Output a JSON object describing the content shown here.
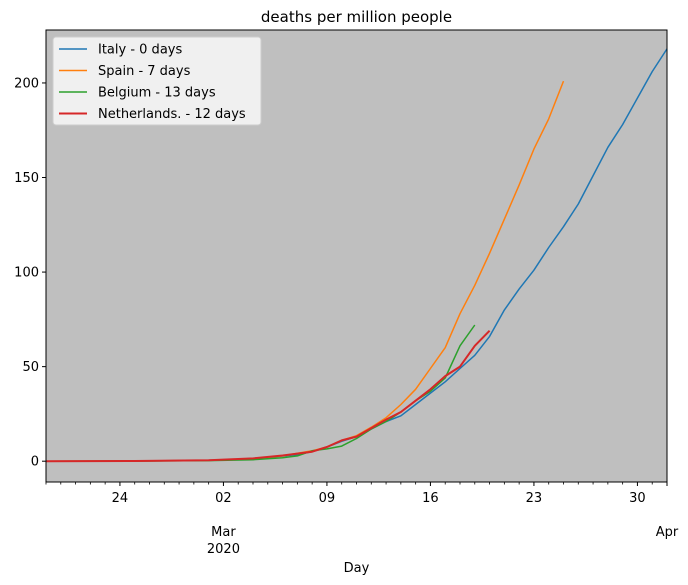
{
  "chart_data": {
    "type": "line",
    "title": "deaths per million people",
    "xlabel": "Day",
    "ylabel": "",
    "x_unit": "date",
    "xlim": [
      "2020-02-19",
      "2020-04-01"
    ],
    "ylim": [
      -11,
      228
    ],
    "yticks": [
      0,
      50,
      100,
      150,
      200
    ],
    "xticks_major": [
      {
        "date": "2020-02-24",
        "label": "24"
      },
      {
        "date": "2020-03-02",
        "label": "02",
        "sublabel": "Mar",
        "sublabel2": "2020"
      },
      {
        "date": "2020-03-09",
        "label": "09"
      },
      {
        "date": "2020-03-16",
        "label": "16"
      },
      {
        "date": "2020-03-23",
        "label": "23"
      },
      {
        "date": "2020-03-30",
        "label": "30"
      },
      {
        "date": "2020-04-01",
        "label": "",
        "sublabel": "Apr"
      }
    ],
    "grid": false,
    "background": "#bfbfbf",
    "legend_position": "top-left",
    "series": [
      {
        "name": "Italy - 0 days",
        "color": "#1f77b4",
        "points": [
          [
            "2020-02-19",
            0
          ],
          [
            "2020-02-22",
            0
          ],
          [
            "2020-02-25",
            0.1
          ],
          [
            "2020-02-28",
            0.3
          ],
          [
            "2020-03-01",
            0.5
          ],
          [
            "2020-03-03",
            1.0
          ],
          [
            "2020-03-05",
            2.0
          ],
          [
            "2020-03-07",
            3.5
          ],
          [
            "2020-03-08",
            5.0
          ],
          [
            "2020-03-09",
            7.5
          ],
          [
            "2020-03-10",
            10.5
          ],
          [
            "2020-03-11",
            13.0
          ],
          [
            "2020-03-12",
            17.0
          ],
          [
            "2020-03-13",
            21.0
          ],
          [
            "2020-03-14",
            24.0
          ],
          [
            "2020-03-15",
            30.0
          ],
          [
            "2020-03-16",
            36.0
          ],
          [
            "2020-03-17",
            42.0
          ],
          [
            "2020-03-18",
            49.0
          ],
          [
            "2020-03-19",
            56.0
          ],
          [
            "2020-03-20",
            66.0
          ],
          [
            "2020-03-21",
            80.0
          ],
          [
            "2020-03-22",
            91.0
          ],
          [
            "2020-03-23",
            101.0
          ],
          [
            "2020-03-24",
            113.0
          ],
          [
            "2020-03-25",
            124.0
          ],
          [
            "2020-03-26",
            136.0
          ],
          [
            "2020-03-27",
            151.0
          ],
          [
            "2020-03-28",
            166.0
          ],
          [
            "2020-03-29",
            178.0
          ],
          [
            "2020-03-30",
            192.0
          ],
          [
            "2020-03-31",
            206.0
          ],
          [
            "2020-04-01",
            218.0
          ]
        ]
      },
      {
        "name": "Spain - 7 days",
        "color": "#ff7f0e",
        "points": [
          [
            "2020-02-19",
            0
          ],
          [
            "2020-02-25",
            0.1
          ],
          [
            "2020-03-01",
            0.4
          ],
          [
            "2020-03-04",
            1.2
          ],
          [
            "2020-03-06",
            2.8
          ],
          [
            "2020-03-08",
            5.5
          ],
          [
            "2020-03-09",
            7.5
          ],
          [
            "2020-03-10",
            11.0
          ],
          [
            "2020-03-11",
            13.5
          ],
          [
            "2020-03-12",
            18.0
          ],
          [
            "2020-03-13",
            23.0
          ],
          [
            "2020-03-14",
            30.0
          ],
          [
            "2020-03-15",
            38.0
          ],
          [
            "2020-03-16",
            49.0
          ],
          [
            "2020-03-17",
            60.0
          ],
          [
            "2020-03-18",
            78.0
          ],
          [
            "2020-03-19",
            93.0
          ],
          [
            "2020-03-20",
            110.0
          ],
          [
            "2020-03-21",
            128.0
          ],
          [
            "2020-03-22",
            146.0
          ],
          [
            "2020-03-23",
            165.0
          ],
          [
            "2020-03-24",
            181.0
          ],
          [
            "2020-03-25",
            201.0
          ]
        ]
      },
      {
        "name": "Belgium - 13 days",
        "color": "#2ca02c",
        "points": [
          [
            "2020-02-19",
            0
          ],
          [
            "2020-02-25",
            0.1
          ],
          [
            "2020-03-01",
            0.3
          ],
          [
            "2020-03-04",
            0.8
          ],
          [
            "2020-03-06",
            1.8
          ],
          [
            "2020-03-07",
            2.8
          ],
          [
            "2020-03-08",
            5.5
          ],
          [
            "2020-03-09",
            6.5
          ],
          [
            "2020-03-10",
            8.0
          ],
          [
            "2020-03-11",
            12.0
          ],
          [
            "2020-03-12",
            17.0
          ],
          [
            "2020-03-13",
            21.0
          ],
          [
            "2020-03-14",
            26.0
          ],
          [
            "2020-03-15",
            32.0
          ],
          [
            "2020-03-16",
            37.0
          ],
          [
            "2020-03-17",
            44.0
          ],
          [
            "2020-03-18",
            61.0
          ],
          [
            "2020-03-19",
            72.0
          ]
        ]
      },
      {
        "name": "Netherlands. - 12 days",
        "color": "#d62728",
        "points": [
          [
            "2020-02-19",
            0
          ],
          [
            "2020-02-25",
            0.1
          ],
          [
            "2020-03-01",
            0.5
          ],
          [
            "2020-03-04",
            1.5
          ],
          [
            "2020-03-06",
            3.0
          ],
          [
            "2020-03-08",
            5.0
          ],
          [
            "2020-03-09",
            7.5
          ],
          [
            "2020-03-10",
            11.0
          ],
          [
            "2020-03-11",
            13.0
          ],
          [
            "2020-03-12",
            17.5
          ],
          [
            "2020-03-13",
            22.0
          ],
          [
            "2020-03-14",
            26.0
          ],
          [
            "2020-03-15",
            32.0
          ],
          [
            "2020-03-16",
            38.0
          ],
          [
            "2020-03-17",
            45.0
          ],
          [
            "2020-03-18",
            50.0
          ],
          [
            "2020-03-19",
            61.0
          ],
          [
            "2020-03-20",
            69.0
          ]
        ]
      }
    ]
  }
}
